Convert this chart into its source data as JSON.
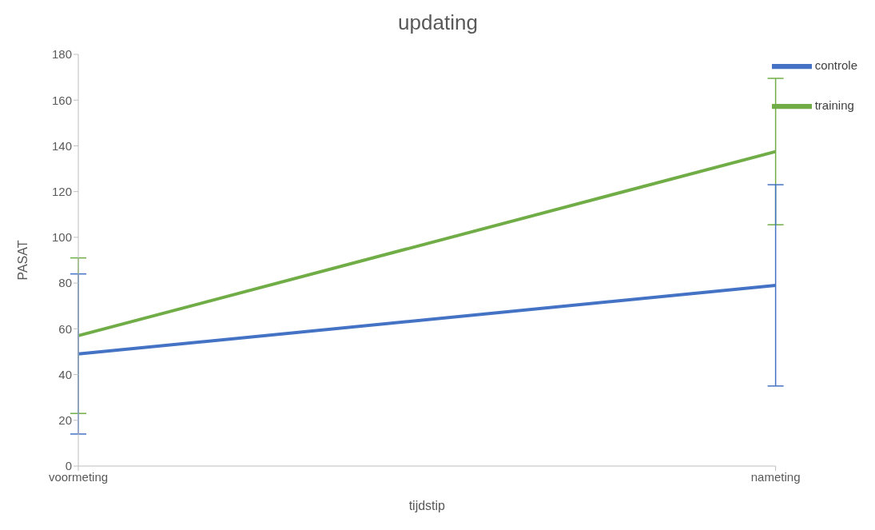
{
  "chart_data": {
    "type": "line",
    "title": "updating",
    "xlabel": "tijdstip",
    "ylabel": "PASAT",
    "categories": [
      "voormeting",
      "nameting"
    ],
    "series": [
      {
        "name": "training",
        "color": "#70ad47",
        "values": [
          57,
          137.5
        ],
        "errors": [
          34,
          32
        ]
      },
      {
        "name": "controle",
        "color": "#4472c4",
        "values": [
          49,
          79
        ],
        "errors": [
          35,
          44
        ]
      }
    ],
    "ylim": [
      0,
      180
    ],
    "yticks": [
      0,
      20,
      40,
      60,
      80,
      100,
      120,
      140,
      160,
      180
    ],
    "grid": false,
    "legend": "top right",
    "marker": "none",
    "line_style": "solid"
  }
}
